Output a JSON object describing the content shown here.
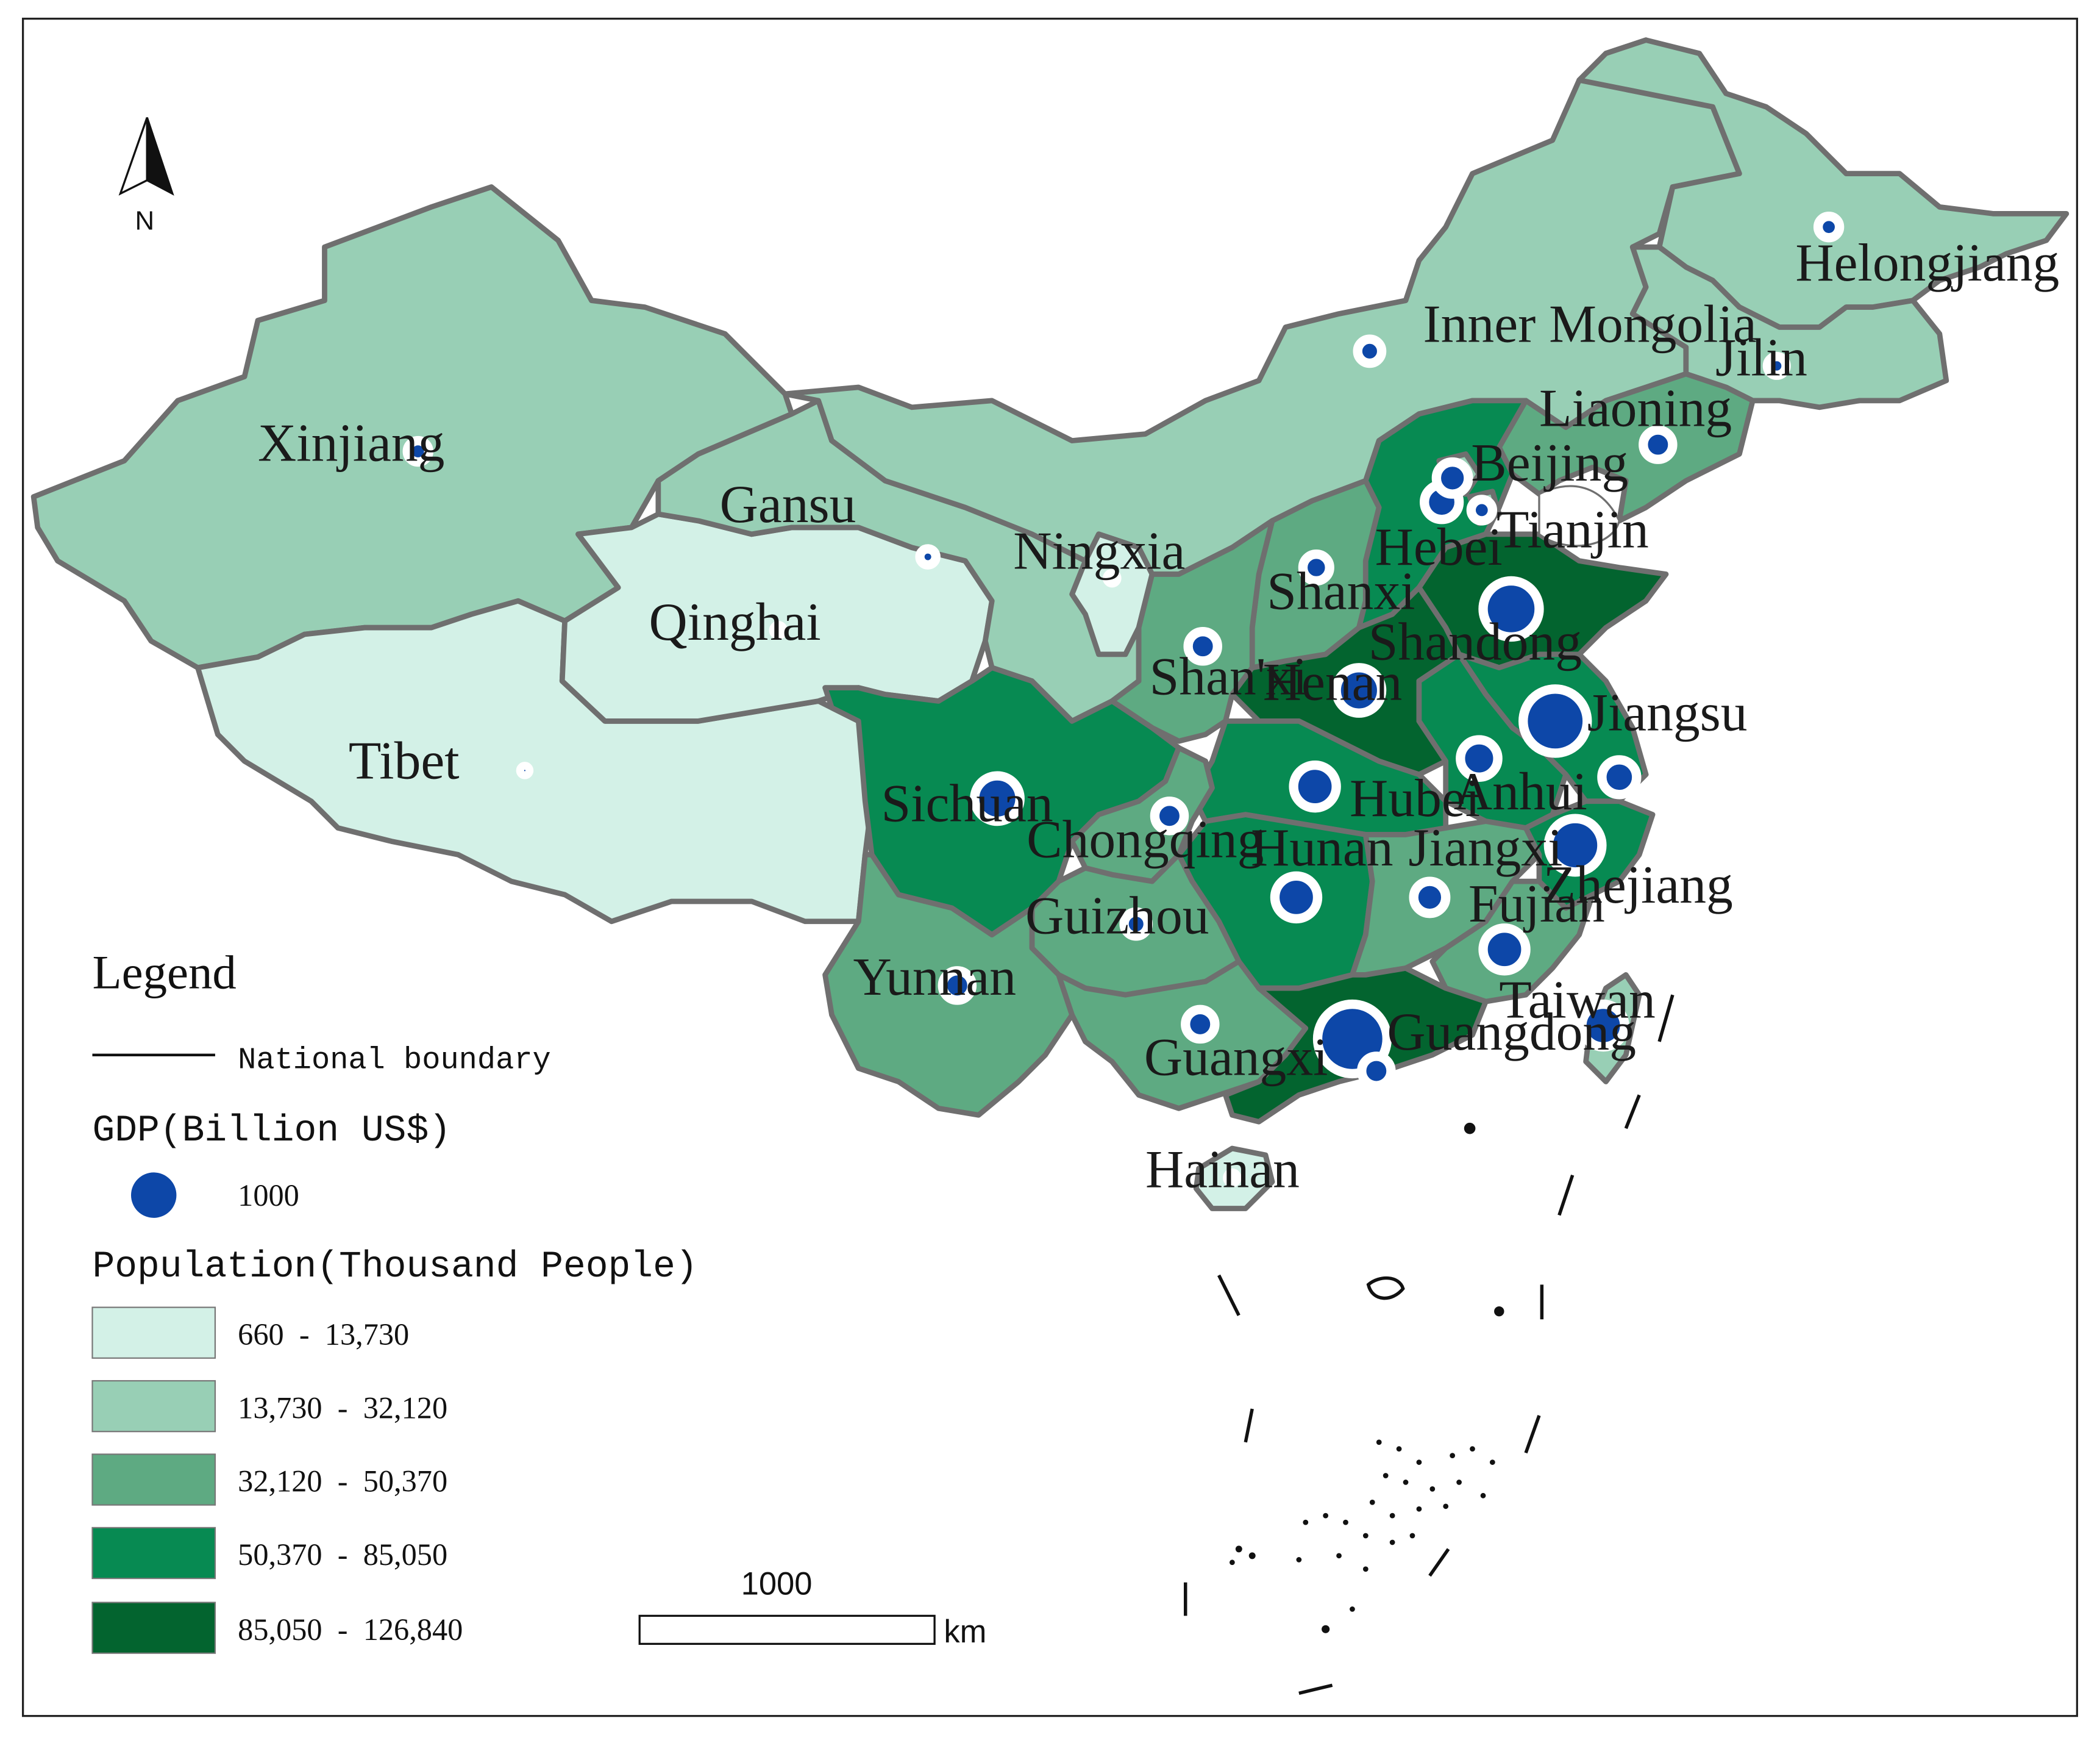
{
  "colors": {
    "class_1": "#d3f1e7",
    "class_2": "#98cfb5",
    "class_3": "#5eaa82",
    "class_4": "#078a52",
    "class_5": "#03642f",
    "bubble": "#0d47a8"
  },
  "north_arrow": {
    "label": "N",
    "icon": "north-arrow-icon"
  },
  "legend": {
    "title": "Legend",
    "boundary_label": "National boundary",
    "gdp_title": "GDP(Billion US$)",
    "gdp_symbol_value": "1000",
    "population_title": "Population(Thousand People)",
    "classes": [
      {
        "label": "660  -  13,730"
      },
      {
        "label": "13,730  -  32,120"
      },
      {
        "label": "32,120  -  50,370"
      },
      {
        "label": "50,370  -  85,050"
      },
      {
        "label": "85,050  -  126,840"
      }
    ]
  },
  "scale_bar": {
    "value": "1000",
    "unit": "km"
  },
  "provinces": [
    {
      "name": "Xinjiang",
      "class": 2
    },
    {
      "name": "Tibet",
      "class": 1
    },
    {
      "name": "Qinghai",
      "class": 1
    },
    {
      "name": "Gansu",
      "class": 2
    },
    {
      "name": "Inner Mongolia",
      "class": 2
    },
    {
      "name": "Helongjiang",
      "class": 2
    },
    {
      "name": "Jilin",
      "class": 2
    },
    {
      "name": "Liaoning",
      "class": 3
    },
    {
      "name": "Ningxia",
      "class": 1
    },
    {
      "name": "Shanxi",
      "class": 3
    },
    {
      "name": "Shan'xi",
      "class": 3
    },
    {
      "name": "Hebei",
      "class": 4
    },
    {
      "name": "Beijing",
      "class": 2
    },
    {
      "name": "Tianjin",
      "class": 2
    },
    {
      "name": "Shandong",
      "class": 5
    },
    {
      "name": "Henan",
      "class": 5
    },
    {
      "name": "Jiangsu",
      "class": 4
    },
    {
      "name": "Anhui",
      "class": 4
    },
    {
      "name": "Hubei",
      "class": 4
    },
    {
      "name": "Sichuan",
      "class": 4
    },
    {
      "name": "Chongqing",
      "class": 3
    },
    {
      "name": "Hunan",
      "class": 4
    },
    {
      "name": "Jiangxi",
      "class": 3
    },
    {
      "name": "Zhejiang",
      "class": 4
    },
    {
      "name": "Fujian",
      "class": 3
    },
    {
      "name": "Guizhou",
      "class": 3
    },
    {
      "name": "Yunnan",
      "class": 3
    },
    {
      "name": "Guangxi",
      "class": 3
    },
    {
      "name": "Guangdong",
      "class": 5
    },
    {
      "name": "Hainan",
      "class": 1
    },
    {
      "name": "Taiwan",
      "class": 2
    }
  ]
}
